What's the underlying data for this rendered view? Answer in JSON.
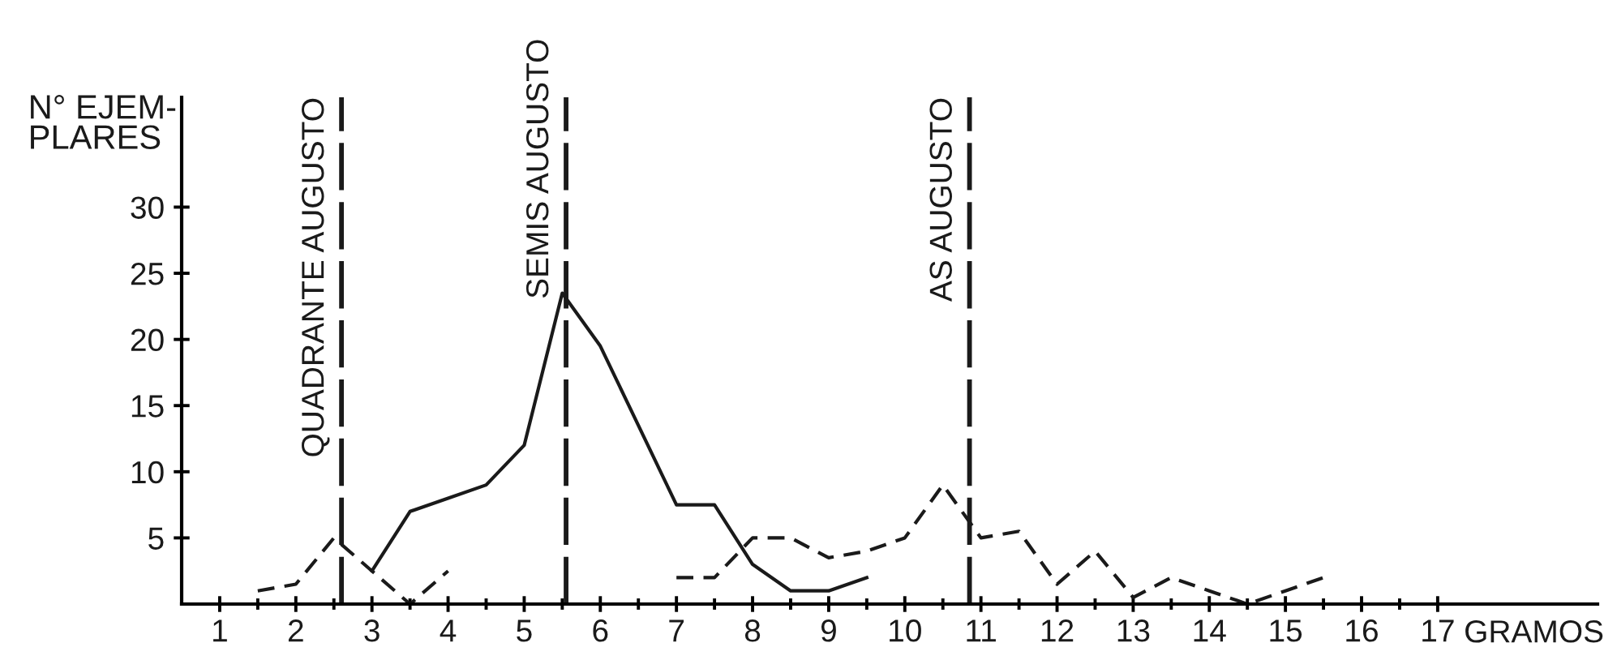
{
  "chart_data": {
    "type": "line",
    "xlabel": "GRAMOS",
    "ylabel": "N° EJEM-\nPLARES",
    "series": [
      {
        "color": "#1a1a1a",
        "line_style": "solid",
        "x": [
          3,
          3.5,
          4,
          4.5,
          5,
          5.5,
          6,
          7,
          7.5,
          8,
          8.5,
          9,
          9.5
        ],
        "values": [
          2.5,
          7,
          8,
          9,
          12,
          23.5,
          19.5,
          7.5,
          7.5,
          3,
          1,
          1,
          2
        ]
      },
      {
        "color": "#1a1a1a",
        "line_style": "dashed",
        "x": [
          1.5,
          2,
          2.5,
          3,
          3.5,
          4,
          4.5,
          5,
          5.5,
          6,
          6.5,
          7,
          7.5,
          8,
          8.5,
          9,
          9.5,
          10,
          10.5,
          11,
          11.5,
          12,
          12.5,
          13,
          13.5,
          14,
          14.5,
          15,
          15.5
        ],
        "values": [
          1,
          1.5,
          5,
          2.5,
          0,
          2.5,
          null,
          null,
          null,
          null,
          null,
          2,
          2,
          5,
          5,
          3.5,
          4,
          5,
          9,
          5,
          5.5,
          1.5,
          4,
          0.5,
          2,
          1,
          0,
          1,
          2
        ]
      }
    ],
    "xlim": [
      0.5,
      19.1
    ],
    "xticks": [
      1,
      {
        "value": 1.5,
        "label": null
      },
      2,
      {
        "value": 2.5,
        "label": null
      },
      3,
      {
        "value": 3.5,
        "label": null
      },
      4,
      {
        "value": 4.5,
        "label": null
      },
      5,
      {
        "value": 5.5,
        "label": null
      },
      6,
      {
        "value": 6.5,
        "label": null
      },
      7,
      {
        "value": 7.5,
        "label": null
      },
      8,
      {
        "value": 8.5,
        "label": null
      },
      9,
      {
        "value": 9.5,
        "label": null
      },
      10,
      {
        "value": 10.5,
        "label": null
      },
      11,
      {
        "value": 11.5,
        "label": null
      },
      12,
      {
        "value": 12.5,
        "label": null
      },
      13,
      {
        "value": 13.5,
        "label": null
      },
      14,
      {
        "value": 14.5,
        "label": null
      },
      15,
      {
        "value": 15.5,
        "label": null
      },
      16,
      {
        "value": 16.5,
        "label": null
      },
      17
    ],
    "ylim": [
      0,
      38.3
    ],
    "yticks": [
      5,
      10,
      15,
      20,
      25,
      30
    ],
    "ref_lines": [
      {
        "axis": "x",
        "value": 2.6,
        "label": "QUADRANTE AUGUSTO",
        "color": "#1a1a1a",
        "line_style": "dashed"
      },
      {
        "axis": "x",
        "value": 5.55,
        "label": "SEMIS AUGUSTO",
        "color": "#1a1a1a",
        "line_style": "dashed"
      },
      {
        "axis": "x",
        "value": 10.85,
        "label": "AS AUGUSTO",
        "color": "#1a1a1a",
        "line_style": "dashed"
      }
    ]
  }
}
